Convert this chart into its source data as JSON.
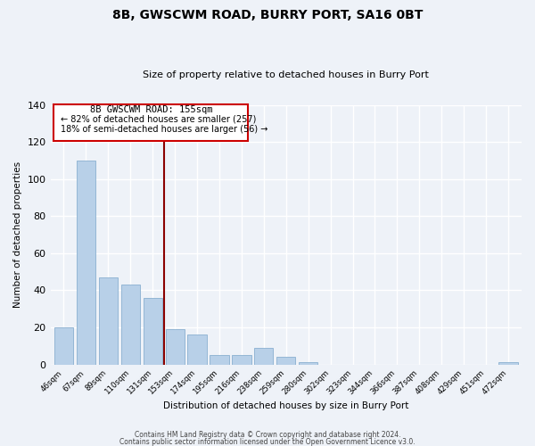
{
  "title": "8B, GWSCWM ROAD, BURRY PORT, SA16 0BT",
  "subtitle": "Size of property relative to detached houses in Burry Port",
  "xlabel": "Distribution of detached houses by size in Burry Port",
  "ylabel": "Number of detached properties",
  "bar_color": "#b8d0e8",
  "bar_edge_color": "#8ab0d0",
  "categories": [
    "46sqm",
    "67sqm",
    "89sqm",
    "110sqm",
    "131sqm",
    "153sqm",
    "174sqm",
    "195sqm",
    "216sqm",
    "238sqm",
    "259sqm",
    "280sqm",
    "302sqm",
    "323sqm",
    "344sqm",
    "366sqm",
    "387sqm",
    "408sqm",
    "429sqm",
    "451sqm",
    "472sqm"
  ],
  "values": [
    20,
    110,
    47,
    43,
    36,
    19,
    16,
    5,
    5,
    9,
    4,
    1,
    0,
    0,
    0,
    0,
    0,
    0,
    0,
    0,
    1
  ],
  "ylim": [
    0,
    140
  ],
  "yticks": [
    0,
    20,
    40,
    60,
    80,
    100,
    120,
    140
  ],
  "annotation_title": "8B GWSCWM ROAD: 155sqm",
  "annotation_line1": "← 82% of detached houses are smaller (257)",
  "annotation_line2": "18% of semi-detached houses are larger (56) →",
  "annotation_box_color": "#ffffff",
  "annotation_box_edge_color": "#cc0000",
  "vline_color": "#8b0000",
  "footer1": "Contains HM Land Registry data © Crown copyright and database right 2024.",
  "footer2": "Contains public sector information licensed under the Open Government Licence v3.0.",
  "background_color": "#eef2f8",
  "grid_color": "#ffffff"
}
